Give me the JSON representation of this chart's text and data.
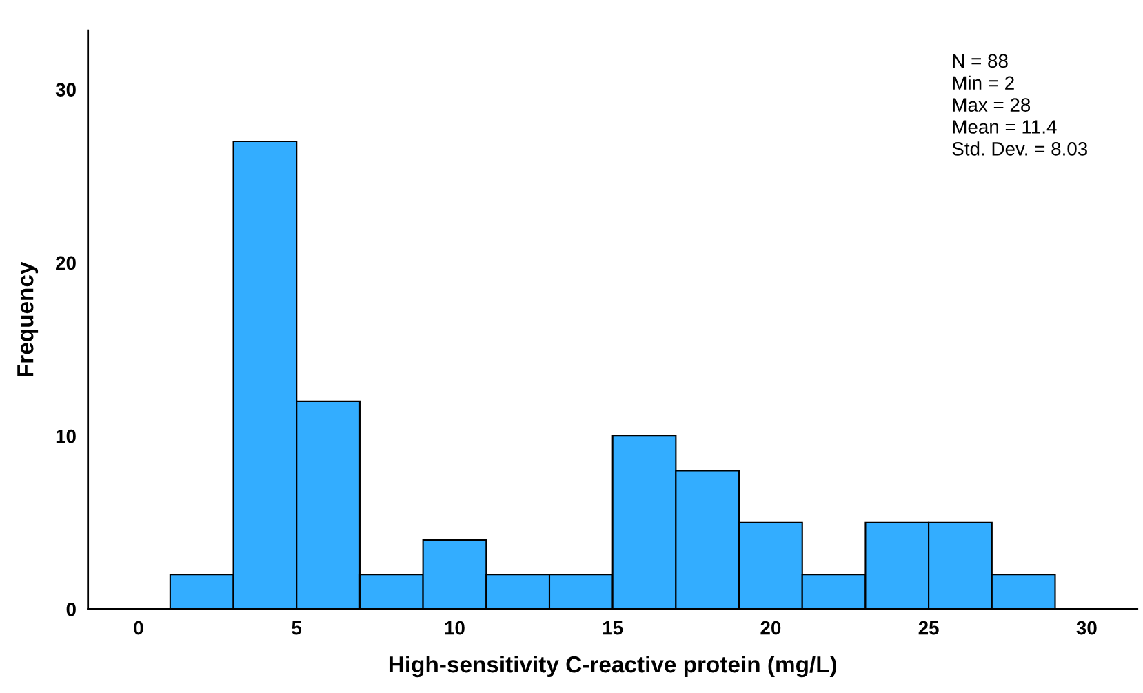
{
  "chart_data": {
    "type": "histogram",
    "xlabel": "High-sensitivity C-reactive protein (mg/L)",
    "ylabel": "Frequency",
    "bins": [
      1,
      3,
      5,
      7,
      9,
      11,
      13,
      15,
      17,
      19,
      21,
      23,
      25,
      27,
      29
    ],
    "values": [
      2,
      27,
      12,
      2,
      4,
      2,
      2,
      10,
      8,
      5,
      2,
      5,
      5,
      2
    ],
    "color": "#33adff",
    "xlim": [
      -1.6,
      31.6
    ],
    "ylim": [
      0,
      33.4
    ],
    "xticks": [
      0,
      5,
      10,
      15,
      20,
      25,
      30
    ],
    "yticks": [
      0,
      10,
      20,
      30
    ],
    "grid": false,
    "annotations": [
      "N = 88",
      "Min = 2",
      "Max = 28",
      "Mean = 11.4",
      "Std. Dev. = 8.03"
    ]
  }
}
